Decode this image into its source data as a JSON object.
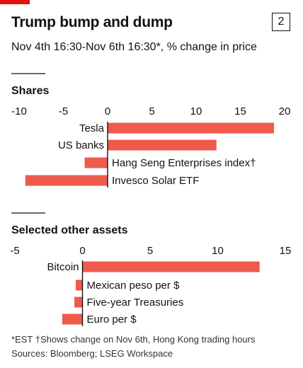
{
  "header": {
    "title": "Trump bump and dump",
    "chart_number": "2",
    "subtitle": "Nov 4th 16:30-Nov 6th 16:30*, % change in price"
  },
  "colors": {
    "bar": "#f05a4b",
    "accent": "#e3120b",
    "text": "#121212"
  },
  "footer": {
    "note": "*EST   †Shows change on Nov 6th, Hong Kong trading hours",
    "sources": "Sources: Bloomberg; LSEG Workspace"
  },
  "chart_data": [
    {
      "type": "bar",
      "orientation": "horizontal",
      "title": "Shares",
      "categories": [
        "Tesla",
        "US banks",
        "Hang Seng Enterprises index†",
        "Invesco Solar ETF"
      ],
      "values": [
        18.8,
        12.3,
        -2.6,
        -9.3
      ],
      "xlim": [
        -10,
        20
      ],
      "ticks": [
        -10,
        -5,
        0,
        5,
        10,
        15,
        20
      ]
    },
    {
      "type": "bar",
      "orientation": "horizontal",
      "title": "Selected other assets",
      "categories": [
        "Bitcoin",
        "Mexican peso per $",
        "Five-year Treasuries",
        "Euro per $"
      ],
      "values": [
        13.1,
        -0.5,
        -0.6,
        -1.5
      ],
      "xlim": [
        -5,
        15
      ],
      "ticks": [
        -5,
        0,
        5,
        10,
        15
      ]
    }
  ]
}
